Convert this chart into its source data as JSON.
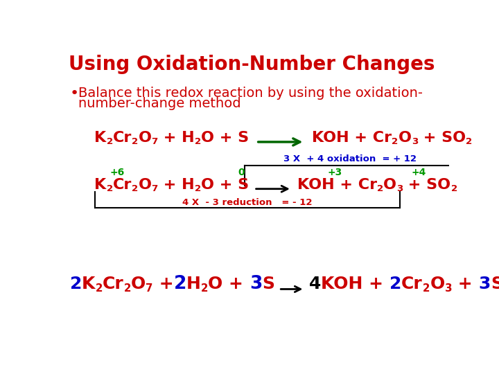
{
  "title": "Using Oxidation-Number Changes",
  "title_color": "#cc0000",
  "title_fontsize": 20,
  "bg_color": "#ffffff",
  "bullet_text_line1": "Balance this redox reaction by using the oxidation-",
  "bullet_text_line2": "number-change method",
  "bullet_color": "#cc0000",
  "bullet_fontsize": 14,
  "red": "#cc0000",
  "green_arrow": "#006600",
  "green_label": "#009900",
  "blue": "#0000cc",
  "black": "#000000"
}
